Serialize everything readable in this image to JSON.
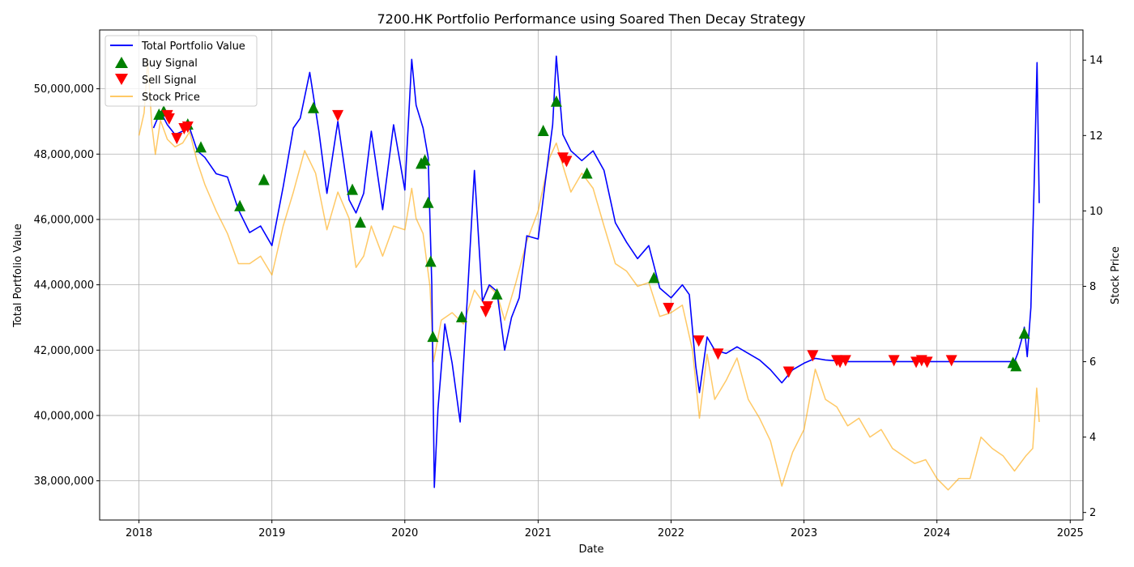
{
  "chart_data": {
    "type": "line",
    "title": "7200.HK Portfolio Performance using Soared Then Decay Strategy",
    "xlabel": "Date",
    "ylabel": "Total Portfolio Value",
    "y2label": "Stock Price",
    "xlim": [
      "2017-09-15",
      "2025-02-05"
    ],
    "ylim": [
      36800000,
      51800000
    ],
    "y2lim": [
      1.8,
      14.8
    ],
    "grid": true,
    "legend_position": "top-left",
    "x_ticks": [
      "2018",
      "2019",
      "2020",
      "2021",
      "2022",
      "2023",
      "2024",
      "2025"
    ],
    "y_ticks": [
      "38,000,000",
      "40,000,000",
      "42,000,000",
      "44,000,000",
      "46,000,000",
      "48,000,000",
      "50,000,000"
    ],
    "y2_ticks": [
      "2",
      "4",
      "6",
      "8",
      "10",
      "12",
      "14"
    ],
    "legend": [
      "Total Portfolio Value",
      "Buy Signal",
      "Sell Signal",
      "Stock Price"
    ],
    "colors": {
      "portfolio": "#0000ff",
      "buy": "#008000",
      "sell": "#ff0000",
      "stock": "#ffa500"
    },
    "series": [
      {
        "name": "Total Portfolio Value",
        "axis": "left",
        "points": [
          [
            "2018-02-10",
            48800000
          ],
          [
            "2018-03-01",
            49300000
          ],
          [
            "2018-03-20",
            48900000
          ],
          [
            "2018-04-10",
            48600000
          ],
          [
            "2018-05-01",
            48700000
          ],
          [
            "2018-05-20",
            48800000
          ],
          [
            "2018-06-10",
            48100000
          ],
          [
            "2018-07-01",
            47900000
          ],
          [
            "2018-08-01",
            47400000
          ],
          [
            "2018-09-01",
            47300000
          ],
          [
            "2018-10-01",
            46300000
          ],
          [
            "2018-11-01",
            45600000
          ],
          [
            "2018-12-01",
            45800000
          ],
          [
            "2019-01-01",
            45200000
          ],
          [
            "2019-02-01",
            47000000
          ],
          [
            "2019-03-01",
            48800000
          ],
          [
            "2019-03-20",
            49100000
          ],
          [
            "2019-04-15",
            50500000
          ],
          [
            "2019-05-10",
            48700000
          ],
          [
            "2019-06-01",
            46800000
          ],
          [
            "2019-07-01",
            49000000
          ],
          [
            "2019-08-01",
            46600000
          ],
          [
            "2019-08-20",
            46200000
          ],
          [
            "2019-09-10",
            46800000
          ],
          [
            "2019-10-01",
            48700000
          ],
          [
            "2019-11-01",
            46300000
          ],
          [
            "2019-12-01",
            48900000
          ],
          [
            "2020-01-01",
            46900000
          ],
          [
            "2020-01-20",
            50900000
          ],
          [
            "2020-02-01",
            49500000
          ],
          [
            "2020-02-20",
            48800000
          ],
          [
            "2020-03-05",
            47900000
          ],
          [
            "2020-03-15",
            44000000
          ],
          [
            "2020-03-22",
            37800000
          ],
          [
            "2020-04-01",
            40200000
          ],
          [
            "2020-04-20",
            42800000
          ],
          [
            "2020-05-10",
            41600000
          ],
          [
            "2020-06-01",
            39800000
          ],
          [
            "2020-06-20",
            43500000
          ],
          [
            "2020-07-10",
            47500000
          ],
          [
            "2020-08-01",
            43500000
          ],
          [
            "2020-08-20",
            44000000
          ],
          [
            "2020-09-10",
            43800000
          ],
          [
            "2020-10-01",
            42000000
          ],
          [
            "2020-10-20",
            43000000
          ],
          [
            "2020-11-10",
            43600000
          ],
          [
            "2020-12-01",
            45500000
          ],
          [
            "2021-01-01",
            45400000
          ],
          [
            "2021-01-20",
            47100000
          ],
          [
            "2021-02-10",
            48900000
          ],
          [
            "2021-02-20",
            51000000
          ],
          [
            "2021-03-10",
            48600000
          ],
          [
            "2021-04-01",
            48100000
          ],
          [
            "2021-05-01",
            47800000
          ],
          [
            "2021-06-01",
            48100000
          ],
          [
            "2021-07-01",
            47500000
          ],
          [
            "2021-08-01",
            45900000
          ],
          [
            "2021-09-01",
            45300000
          ],
          [
            "2021-10-01",
            44800000
          ],
          [
            "2021-11-01",
            45200000
          ],
          [
            "2021-12-01",
            43900000
          ],
          [
            "2022-01-01",
            43600000
          ],
          [
            "2022-02-01",
            44000000
          ],
          [
            "2022-02-20",
            43700000
          ],
          [
            "2022-03-10",
            41500000
          ],
          [
            "2022-03-20",
            40700000
          ],
          [
            "2022-04-10",
            42400000
          ],
          [
            "2022-05-01",
            42000000
          ],
          [
            "2022-06-01",
            41900000
          ],
          [
            "2022-07-01",
            42100000
          ],
          [
            "2022-08-01",
            41900000
          ],
          [
            "2022-09-01",
            41700000
          ],
          [
            "2022-10-01",
            41400000
          ],
          [
            "2022-11-01",
            41000000
          ],
          [
            "2022-12-01",
            41400000
          ],
          [
            "2023-01-01",
            41600000
          ],
          [
            "2023-02-01",
            41750000
          ],
          [
            "2023-03-01",
            41700000
          ],
          [
            "2023-05-01",
            41650000
          ],
          [
            "2024-08-01",
            41650000
          ],
          [
            "2024-08-10",
            41900000
          ],
          [
            "2024-08-20",
            42300000
          ],
          [
            "2024-08-28",
            42700000
          ],
          [
            "2024-09-05",
            41800000
          ],
          [
            "2024-09-15",
            43300000
          ],
          [
            "2024-09-25",
            47500000
          ],
          [
            "2024-10-02",
            50800000
          ],
          [
            "2024-10-08",
            46500000
          ]
        ]
      },
      {
        "name": "Stock Price",
        "axis": "right",
        "points": [
          [
            "2018-01-01",
            12.0
          ],
          [
            "2018-01-15",
            12.6
          ],
          [
            "2018-01-25",
            14.0
          ],
          [
            "2018-02-05",
            12.3
          ],
          [
            "2018-02-15",
            11.5
          ],
          [
            "2018-03-01",
            12.4
          ],
          [
            "2018-03-20",
            11.9
          ],
          [
            "2018-04-10",
            11.7
          ],
          [
            "2018-05-01",
            11.8
          ],
          [
            "2018-05-20",
            12.1
          ],
          [
            "2018-06-10",
            11.3
          ],
          [
            "2018-07-01",
            10.7
          ],
          [
            "2018-08-01",
            10.0
          ],
          [
            "2018-09-01",
            9.4
          ],
          [
            "2018-10-01",
            8.6
          ],
          [
            "2018-11-01",
            8.6
          ],
          [
            "2018-12-01",
            8.8
          ],
          [
            "2019-01-01",
            8.3
          ],
          [
            "2019-02-01",
            9.6
          ],
          [
            "2019-03-01",
            10.5
          ],
          [
            "2019-04-01",
            11.6
          ],
          [
            "2019-05-01",
            11.0
          ],
          [
            "2019-06-01",
            9.5
          ],
          [
            "2019-07-01",
            10.5
          ],
          [
            "2019-08-01",
            9.8
          ],
          [
            "2019-08-20",
            8.5
          ],
          [
            "2019-09-10",
            8.8
          ],
          [
            "2019-10-01",
            9.6
          ],
          [
            "2019-11-01",
            8.8
          ],
          [
            "2019-12-01",
            9.6
          ],
          [
            "2020-01-01",
            9.5
          ],
          [
            "2020-01-20",
            10.6
          ],
          [
            "2020-02-01",
            9.8
          ],
          [
            "2020-02-20",
            9.4
          ],
          [
            "2020-03-10",
            8.0
          ],
          [
            "2020-03-20",
            6.0
          ],
          [
            "2020-04-10",
            7.1
          ],
          [
            "2020-05-10",
            7.3
          ],
          [
            "2020-06-10",
            7.0
          ],
          [
            "2020-07-10",
            7.9
          ],
          [
            "2020-08-01",
            7.6
          ],
          [
            "2020-08-20",
            8.0
          ],
          [
            "2020-09-10",
            7.8
          ],
          [
            "2020-10-01",
            7.1
          ],
          [
            "2020-11-01",
            8.1
          ],
          [
            "2020-12-01",
            9.2
          ],
          [
            "2021-01-01",
            10.0
          ],
          [
            "2021-02-01",
            11.4
          ],
          [
            "2021-02-20",
            11.8
          ],
          [
            "2021-03-10",
            11.2
          ],
          [
            "2021-04-01",
            10.5
          ],
          [
            "2021-05-01",
            11.0
          ],
          [
            "2021-06-01",
            10.6
          ],
          [
            "2021-07-01",
            9.6
          ],
          [
            "2021-08-01",
            8.6
          ],
          [
            "2021-09-01",
            8.4
          ],
          [
            "2021-10-01",
            8.0
          ],
          [
            "2021-11-01",
            8.1
          ],
          [
            "2021-12-01",
            7.2
          ],
          [
            "2022-01-01",
            7.3
          ],
          [
            "2022-02-01",
            7.5
          ],
          [
            "2022-03-01",
            6.3
          ],
          [
            "2022-03-20",
            4.5
          ],
          [
            "2022-04-10",
            6.2
          ],
          [
            "2022-05-01",
            5.0
          ],
          [
            "2022-06-01",
            5.5
          ],
          [
            "2022-07-01",
            6.1
          ],
          [
            "2022-08-01",
            5.0
          ],
          [
            "2022-09-01",
            4.5
          ],
          [
            "2022-10-01",
            3.9
          ],
          [
            "2022-11-01",
            2.7
          ],
          [
            "2022-12-01",
            3.6
          ],
          [
            "2023-01-01",
            4.2
          ],
          [
            "2023-02-01",
            5.8
          ],
          [
            "2023-03-01",
            5.0
          ],
          [
            "2023-04-01",
            4.8
          ],
          [
            "2023-05-01",
            4.3
          ],
          [
            "2023-06-01",
            4.5
          ],
          [
            "2023-07-01",
            4.0
          ],
          [
            "2023-08-01",
            4.2
          ],
          [
            "2023-09-01",
            3.7
          ],
          [
            "2023-10-01",
            3.5
          ],
          [
            "2023-11-01",
            3.3
          ],
          [
            "2023-12-01",
            3.4
          ],
          [
            "2024-01-01",
            2.9
          ],
          [
            "2024-02-01",
            2.6
          ],
          [
            "2024-03-01",
            2.9
          ],
          [
            "2024-04-01",
            2.9
          ],
          [
            "2024-05-01",
            4.0
          ],
          [
            "2024-06-01",
            3.7
          ],
          [
            "2024-07-01",
            3.5
          ],
          [
            "2024-08-01",
            3.1
          ],
          [
            "2024-09-01",
            3.5
          ],
          [
            "2024-09-20",
            3.7
          ],
          [
            "2024-10-01",
            5.3
          ],
          [
            "2024-10-08",
            4.4
          ]
        ]
      }
    ],
    "buy_signals": [
      [
        "2018-02-25",
        49200000
      ],
      [
        "2018-03-10",
        49300000
      ],
      [
        "2018-05-15",
        48900000
      ],
      [
        "2018-06-20",
        48200000
      ],
      [
        "2018-10-05",
        46400000
      ],
      [
        "2018-12-10",
        47200000
      ],
      [
        "2019-04-25",
        49400000
      ],
      [
        "2019-08-10",
        46900000
      ],
      [
        "2019-09-01",
        45900000
      ],
      [
        "2020-02-15",
        47700000
      ],
      [
        "2020-02-25",
        47800000
      ],
      [
        "2020-03-05",
        46500000
      ],
      [
        "2020-03-12",
        44700000
      ],
      [
        "2020-03-18",
        42400000
      ],
      [
        "2020-06-05",
        43000000
      ],
      [
        "2020-09-10",
        43700000
      ],
      [
        "2021-01-15",
        48700000
      ],
      [
        "2021-02-20",
        49600000
      ],
      [
        "2021-05-15",
        47400000
      ],
      [
        "2021-11-15",
        44200000
      ],
      [
        "2024-07-28",
        41600000
      ],
      [
        "2024-08-05",
        41500000
      ],
      [
        "2024-08-28",
        42500000
      ]
    ],
    "sell_signals": [
      [
        "2018-03-20",
        49200000
      ],
      [
        "2018-03-25",
        49100000
      ],
      [
        "2018-04-15",
        48500000
      ],
      [
        "2018-05-05",
        48800000
      ],
      [
        "2018-05-15",
        48850000
      ],
      [
        "2019-07-01",
        49200000
      ],
      [
        "2020-08-10",
        43200000
      ],
      [
        "2020-08-15",
        43350000
      ],
      [
        "2021-03-10",
        47900000
      ],
      [
        "2021-03-20",
        47800000
      ],
      [
        "2021-12-25",
        43300000
      ],
      [
        "2022-03-18",
        42300000
      ],
      [
        "2022-05-10",
        41900000
      ],
      [
        "2022-11-20",
        41350000
      ],
      [
        "2023-01-25",
        41850000
      ],
      [
        "2023-04-01",
        41700000
      ],
      [
        "2023-04-10",
        41650000
      ],
      [
        "2023-04-25",
        41700000
      ],
      [
        "2023-09-05",
        41700000
      ],
      [
        "2023-11-05",
        41650000
      ],
      [
        "2023-11-20",
        41700000
      ],
      [
        "2023-12-05",
        41650000
      ],
      [
        "2024-02-10",
        41700000
      ]
    ]
  }
}
